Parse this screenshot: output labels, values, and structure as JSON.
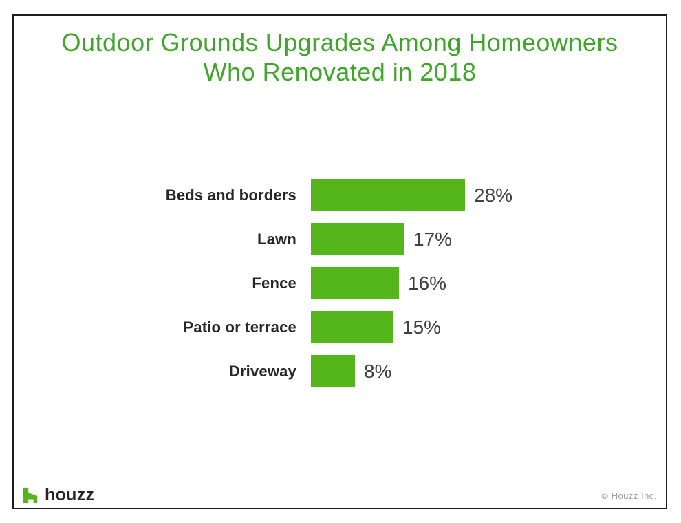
{
  "header": {
    "title_line1": "Outdoor Grounds Upgrades Among Homeowners",
    "title_line2": "Who Renovated in 2018"
  },
  "chart_data": {
    "type": "bar",
    "orientation": "horizontal",
    "title": "Outdoor Grounds Upgrades Among Homeowners Who Renovated in 2018",
    "categories": [
      "Beds and borders",
      "Lawn",
      "Fence",
      "Patio or terrace",
      "Driveway"
    ],
    "values": [
      28,
      17,
      16,
      15,
      8
    ],
    "value_suffix": "%",
    "xlabel": "",
    "ylabel": "",
    "xlim": [
      0,
      30
    ],
    "grid": false,
    "legend": false,
    "data_labels": "outside-end"
  },
  "footer": {
    "brand": "houzz",
    "copyright": "© Houzz Inc."
  },
  "colors": {
    "bar_green": "#54b61a",
    "title_green": "#3ea629",
    "label_dark": "#272727",
    "value_dark": "#404040",
    "copyright_gray": "#9a9a9a",
    "border_dark": "#1d1d1d",
    "logo_text": "#252525"
  },
  "icons": {
    "logo": "houzz-house-h-icon"
  }
}
